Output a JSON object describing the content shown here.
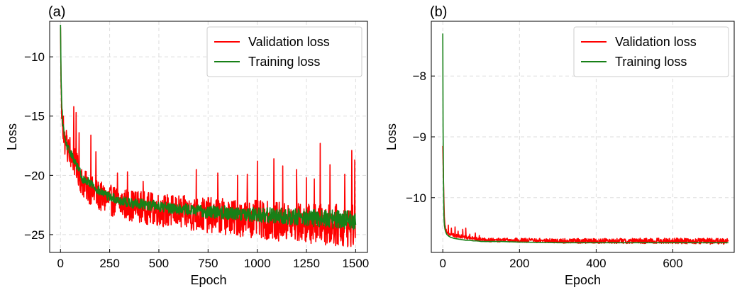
{
  "chart_data": [
    {
      "type": "line",
      "panel_label": "(a)",
      "xlabel": "Epoch",
      "ylabel": "Loss",
      "xlim": [
        -55,
        1560
      ],
      "ylim": [
        -26.5,
        -7
      ],
      "xticks": [
        0,
        250,
        500,
        750,
        1000,
        1250,
        1500
      ],
      "yticks": [
        -10,
        -15,
        -20,
        -25
      ],
      "xtick_labels": [
        "0",
        "250",
        "500",
        "750",
        "1000",
        "1250",
        "1500"
      ],
      "ytick_labels": [
        "−10",
        "−15",
        "−20",
        "−25"
      ],
      "grid": true,
      "legend_position": "top-right",
      "series": [
        {
          "name": "Validation loss",
          "color": "#ff0000",
          "x": [
            0,
            3,
            6,
            10,
            15,
            20,
            30,
            40,
            50,
            60,
            70,
            80,
            90,
            100,
            110,
            130,
            150,
            175,
            200,
            250,
            300,
            350,
            400,
            450,
            500,
            600,
            700,
            800,
            900,
            1000,
            1100,
            1200,
            1300,
            1400,
            1500
          ],
          "y": [
            -7.5,
            -12.5,
            -14.5,
            -15.8,
            -16.5,
            -17.0,
            -17.6,
            -17.9,
            -18.2,
            -18.5,
            -18.8,
            -19.2,
            -19.6,
            -20.1,
            -20.6,
            -20.9,
            -21.2,
            -21.5,
            -21.8,
            -22.1,
            -22.3,
            -22.5,
            -22.6,
            -22.8,
            -22.9,
            -23.1,
            -23.3,
            -23.4,
            -23.6,
            -23.7,
            -23.9,
            -24.0,
            -24.1,
            -24.2,
            -24.3
          ],
          "spikes": [
            [
              15,
              -15.0
            ],
            [
              30,
              -16.2
            ],
            [
              48,
              -16.8
            ],
            [
              68,
              -14.2
            ],
            [
              80,
              -14.7
            ],
            [
              95,
              -16.4
            ],
            [
              155,
              -16.6
            ],
            [
              180,
              -18.0
            ],
            [
              290,
              -19.8
            ],
            [
              340,
              -19.7
            ],
            [
              420,
              -20.5
            ],
            [
              690,
              -19.5
            ],
            [
              800,
              -19.8
            ],
            [
              900,
              -20.0
            ],
            [
              950,
              -19.9
            ],
            [
              1000,
              -18.8
            ],
            [
              1085,
              -18.6
            ],
            [
              1130,
              -19.2
            ],
            [
              1200,
              -19.5
            ],
            [
              1250,
              -20.2
            ],
            [
              1290,
              -20.3
            ],
            [
              1320,
              -17.3
            ],
            [
              1370,
              -19.1
            ],
            [
              1445,
              -19.9
            ],
            [
              1480,
              -17.9
            ],
            [
              1495,
              -18.7
            ]
          ],
          "noise_band": [
            1.2,
            1.8
          ]
        },
        {
          "name": "Training loss",
          "color": "#178017",
          "x": [
            0,
            3,
            6,
            10,
            15,
            20,
            30,
            40,
            50,
            60,
            70,
            80,
            90,
            100,
            105,
            120,
            150,
            175,
            200,
            250,
            300,
            350,
            400,
            450,
            500,
            600,
            700,
            800,
            900,
            1000,
            1100,
            1200,
            1300,
            1400,
            1500
          ],
          "y": [
            -7.3,
            -11.8,
            -13.8,
            -15.2,
            -16.0,
            -16.7,
            -17.4,
            -17.8,
            -18.1,
            -18.4,
            -18.7,
            -19.1,
            -19.4,
            -19.6,
            -20.3,
            -20.4,
            -20.6,
            -21.0,
            -21.4,
            -21.8,
            -22.1,
            -22.3,
            -22.4,
            -22.5,
            -22.6,
            -22.8,
            -23.0,
            -23.1,
            -23.2,
            -23.3,
            -23.4,
            -23.5,
            -23.6,
            -23.7,
            -23.8
          ],
          "noise_band": [
            0.3,
            0.8
          ]
        }
      ]
    },
    {
      "type": "line",
      "panel_label": "(b)",
      "xlabel": "Epoch",
      "ylabel": "Loss",
      "xlim": [
        -30,
        760
      ],
      "ylim": [
        -10.9,
        -7.1
      ],
      "xticks": [
        0,
        200,
        400,
        600
      ],
      "yticks": [
        -8,
        -9,
        -10
      ],
      "xtick_labels": [
        "0",
        "200",
        "400",
        "600"
      ],
      "ytick_labels": [
        "−8",
        "−9",
        "−10"
      ],
      "grid": true,
      "legend_position": "top-right",
      "series": [
        {
          "name": "Validation loss",
          "color": "#ff0000",
          "x": [
            0,
            2,
            4,
            6,
            8,
            10,
            15,
            20,
            30,
            40,
            50,
            60,
            70,
            80,
            90,
            100,
            150,
            200,
            300,
            400,
            500,
            600,
            745
          ],
          "y": [
            -9.15,
            -9.8,
            -10.3,
            -10.45,
            -10.52,
            -10.56,
            -10.59,
            -10.61,
            -10.62,
            -10.63,
            -10.64,
            -10.65,
            -10.66,
            -10.67,
            -10.68,
            -10.69,
            -10.7,
            -10.7,
            -10.71,
            -10.71,
            -10.71,
            -10.71,
            -10.72
          ],
          "spikes": [
            [
              14,
              -10.45
            ],
            [
              22,
              -10.5
            ],
            [
              32,
              -10.48
            ],
            [
              40,
              -10.55
            ],
            [
              52,
              -10.52
            ],
            [
              60,
              -10.5
            ],
            [
              70,
              -10.6
            ],
            [
              85,
              -10.58
            ],
            [
              95,
              -10.62
            ]
          ],
          "noise_band": [
            0.03,
            0.05
          ]
        },
        {
          "name": "Training loss",
          "color": "#178017",
          "x": [
            0,
            0.5,
            1,
            2,
            3,
            4,
            6,
            8,
            10,
            15,
            20,
            30,
            40,
            50,
            60,
            70,
            80,
            90,
            100,
            150,
            200,
            300,
            400,
            500,
            600,
            745
          ],
          "y": [
            -7.3,
            -8.3,
            -9.2,
            -9.9,
            -10.3,
            -10.45,
            -10.53,
            -10.57,
            -10.6,
            -10.63,
            -10.65,
            -10.67,
            -10.68,
            -10.69,
            -10.7,
            -10.7,
            -10.71,
            -10.71,
            -10.72,
            -10.72,
            -10.73,
            -10.74,
            -10.74,
            -10.74,
            -10.74,
            -10.74
          ],
          "noise_band": [
            0.0,
            0.0
          ]
        }
      ]
    }
  ]
}
